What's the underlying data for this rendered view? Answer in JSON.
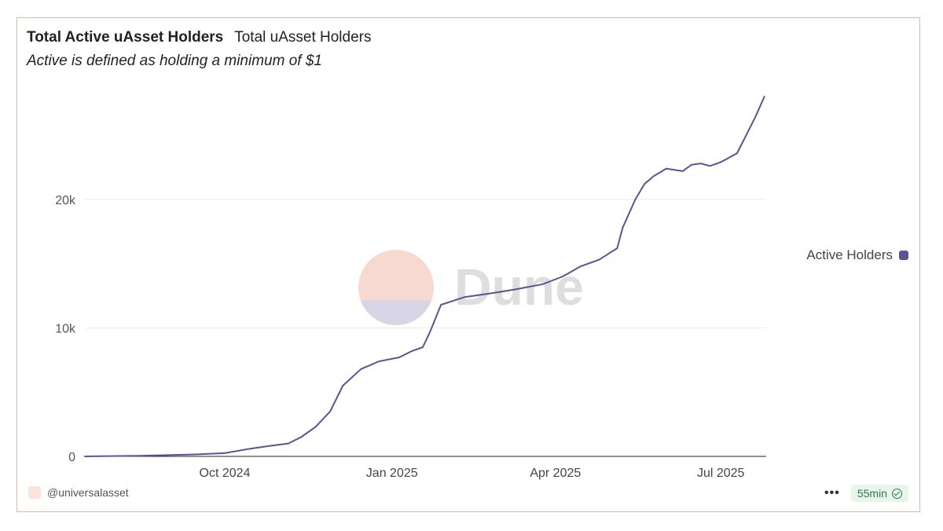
{
  "tabs": [
    {
      "label": "Total Active uAsset Holders",
      "active": true
    },
    {
      "label": "Total uAsset Holders",
      "active": false
    }
  ],
  "subtitle": "Active is defined as holding a minimum of $1",
  "legend": {
    "label": "Active Holders",
    "color": "#5b5394"
  },
  "watermark": "Dune",
  "footer": {
    "owner": "@universalasset",
    "more_icon": "more-icon",
    "freshness": "55min",
    "freshness_icon": "check-circle-icon"
  },
  "colors": {
    "line": "#5b5394",
    "border": "#e7b9a4",
    "grid": "#ebebeb"
  },
  "chart_data": {
    "type": "line",
    "title": "Total Active uAsset Holders",
    "xlabel": "",
    "ylabel": "",
    "xlim": [
      "2024-07-16",
      "2025-07-26"
    ],
    "ylim": [
      0,
      28000
    ],
    "yticks": [
      0,
      10000,
      20000
    ],
    "ytick_labels": [
      "0",
      "10k",
      "20k"
    ],
    "xticks": [
      "2024-10-01",
      "2025-01-01",
      "2025-04-01",
      "2025-07-01"
    ],
    "xtick_labels": [
      "Oct 2024",
      "Jan 2025",
      "Apr 2025",
      "Jul 2025"
    ],
    "grid": true,
    "legend_position": "right",
    "series": [
      {
        "name": "Active Holders",
        "x": [
          "2024-07-16",
          "2024-08-15",
          "2024-09-15",
          "2024-10-01",
          "2024-10-15",
          "2024-10-25",
          "2024-11-05",
          "2024-11-12",
          "2024-11-20",
          "2024-11-28",
          "2024-12-05",
          "2024-12-15",
          "2024-12-25",
          "2025-01-05",
          "2025-01-12",
          "2025-01-18",
          "2025-01-22",
          "2025-01-28",
          "2025-02-10",
          "2025-02-25",
          "2025-03-10",
          "2025-03-25",
          "2025-04-05",
          "2025-04-15",
          "2025-04-25",
          "2025-05-05",
          "2025-05-08",
          "2025-05-15",
          "2025-05-20",
          "2025-05-25",
          "2025-06-01",
          "2025-06-10",
          "2025-06-15",
          "2025-06-20",
          "2025-06-25",
          "2025-07-01",
          "2025-07-05",
          "2025-07-10",
          "2025-07-15",
          "2025-07-20",
          "2025-07-25"
        ],
        "y": [
          0,
          50,
          150,
          250,
          600,
          800,
          1000,
          1500,
          2300,
          3500,
          5500,
          6800,
          7400,
          7700,
          8200,
          8500,
          9700,
          11800,
          12400,
          12700,
          13000,
          13400,
          14000,
          14800,
          15300,
          16200,
          17800,
          20000,
          21200,
          21800,
          22400,
          22200,
          22700,
          22800,
          22600,
          22900,
          23200,
          23600,
          25000,
          26400,
          28000
        ]
      }
    ]
  }
}
